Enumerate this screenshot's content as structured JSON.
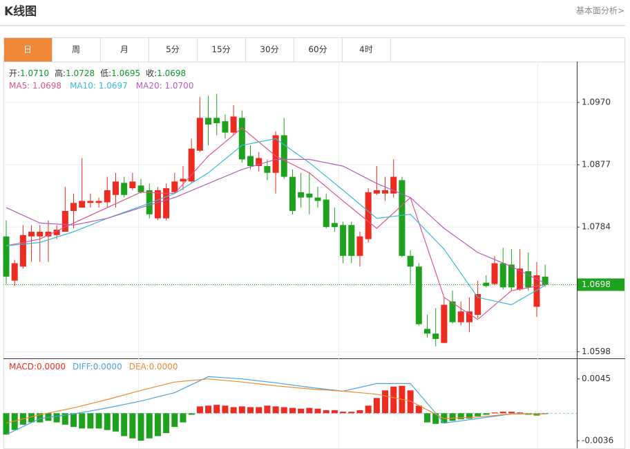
{
  "header": {
    "title": "K线图",
    "link": "基本面分析>"
  },
  "tabs": [
    "日",
    "周",
    "月",
    "5分",
    "15分",
    "30分",
    "60分",
    "4时"
  ],
  "active_tab": 0,
  "chart_data": [
    {
      "type": "candlestick",
      "up_color": "#ee2b20",
      "down_color": "#1ea21e",
      "info": [
        {
          "label": "开:",
          "value": "1.0710"
        },
        {
          "label": "高:",
          "value": "1.0728"
        },
        {
          "label": "低:",
          "value": "1.0695"
        },
        {
          "label": "收:",
          "value": "1.0698"
        }
      ],
      "open": [
        1.077,
        1.0704,
        1.0725,
        1.077,
        1.077,
        1.077,
        1.0772,
        1.0777,
        1.0808,
        1.0813,
        1.082,
        1.082,
        1.0821,
        1.0832,
        1.085,
        1.0842,
        1.0846,
        1.0839,
        1.0797,
        1.0797,
        1.0836,
        1.0852,
        1.0852,
        1.0898,
        1.0947,
        1.0947,
        1.0942,
        1.0925,
        1.0947,
        1.089,
        1.0875,
        1.0875,
        1.0865,
        1.0921,
        1.0859,
        1.0836,
        1.0834,
        1.0828,
        1.0825,
        1.079,
        1.0787,
        1.0787,
        1.0741,
        1.0766,
        1.0834,
        1.0834,
        1.0834,
        1.0854,
        1.0741,
        1.0725,
        1.0632,
        1.0625,
        1.0611,
        1.0673,
        1.0642,
        1.0642,
        1.0653,
        1.0701,
        1.0699,
        1.073,
        1.0728,
        1.0691,
        1.0718,
        1.0665,
        1.071
      ],
      "high": [
        1.0794,
        1.0735,
        1.0787,
        1.0787,
        1.0787,
        1.0794,
        1.0787,
        1.0844,
        1.0834,
        1.0887,
        1.0834,
        1.0828,
        1.0859,
        1.0865,
        1.0859,
        1.0865,
        1.0856,
        1.0849,
        1.0844,
        1.0849,
        1.0865,
        1.0875,
        1.0916,
        1.0978,
        1.098,
        1.0983,
        1.0952,
        1.0966,
        1.0958,
        1.0906,
        1.0896,
        1.0885,
        1.0927,
        1.0947,
        1.087,
        1.0865,
        1.0865,
        1.0844,
        1.0834,
        1.0813,
        1.0792,
        1.0792,
        1.0777,
        1.0842,
        1.0875,
        1.0859,
        1.0885,
        1.0859,
        1.0749,
        1.073,
        1.0653,
        1.0663,
        1.0679,
        1.0689,
        1.0673,
        1.0679,
        1.0704,
        1.0712,
        1.0741,
        1.0753,
        1.0751,
        1.0751,
        1.0746,
        1.0732,
        1.0728
      ],
      "low": [
        1.0699,
        1.0696,
        1.0722,
        1.0732,
        1.0732,
        1.0732,
        1.0766,
        1.0777,
        1.0782,
        1.0813,
        1.0813,
        1.0813,
        1.0813,
        1.0813,
        1.0828,
        1.0839,
        1.0834,
        1.0797,
        1.0794,
        1.0794,
        1.0834,
        1.0839,
        1.0849,
        1.0896,
        1.0906,
        1.0921,
        1.0916,
        1.0921,
        1.088,
        1.087,
        1.0867,
        1.0854,
        1.0834,
        1.0856,
        1.0803,
        1.0813,
        1.0803,
        1.0813,
        1.0782,
        1.0777,
        1.073,
        1.073,
        1.0725,
        1.0761,
        1.0832,
        1.0823,
        1.0828,
        1.0739,
        1.0699,
        1.0637,
        1.0619,
        1.0606,
        1.0611,
        1.064,
        1.0637,
        1.0627,
        1.0648,
        1.0694,
        1.0697,
        1.0691,
        1.0689,
        1.0689,
        1.0689,
        1.065,
        1.0695
      ],
      "close": [
        1.071,
        1.073,
        1.0772,
        1.0777,
        1.0777,
        1.0777,
        1.078,
        1.0808,
        1.082,
        1.0823,
        1.0823,
        1.0823,
        1.0839,
        1.0852,
        1.0832,
        1.0852,
        1.0836,
        1.0803,
        1.0839,
        1.0842,
        1.0852,
        1.0856,
        1.0901,
        1.0947,
        1.0937,
        1.0939,
        1.0925,
        1.0949,
        1.0885,
        1.0875,
        1.0887,
        1.0865,
        1.0921,
        1.0859,
        1.0808,
        1.0828,
        1.0828,
        1.0823,
        1.0784,
        1.0784,
        1.0741,
        1.0741,
        1.077,
        1.0836,
        1.0839,
        1.0839,
        1.0859,
        1.0741,
        1.0725,
        1.0639,
        1.0625,
        1.0617,
        1.0668,
        1.0642,
        1.0658,
        1.0658,
        1.0684,
        1.0696,
        1.073,
        1.0694,
        1.0694,
        1.0722,
        1.0694,
        1.0712,
        1.0698
      ],
      "ma": [
        {
          "name": "MA5",
          "legend_value": ": 1.0698",
          "color": "#e4548a",
          "x": [
            0,
            4,
            8,
            12,
            16,
            20,
            24,
            28,
            32,
            36,
            40,
            44,
            48,
            52,
            56,
            60,
            64
          ],
          "values": [
            1.0756,
            1.0766,
            1.079,
            1.0813,
            1.0836,
            1.0834,
            1.089,
            1.0932,
            1.089,
            1.0865,
            1.0823,
            1.0782,
            1.0828,
            1.0679,
            1.0646,
            1.0689,
            1.0698
          ]
        },
        {
          "name": "MA10",
          "legend_value": ": 1.0697",
          "color": "#35bdd6",
          "x": [
            0,
            4,
            8,
            12,
            16,
            20,
            24,
            28,
            32,
            36,
            40,
            44,
            48,
            52,
            56,
            60,
            64
          ],
          "values": [
            1.0756,
            1.0761,
            1.0777,
            1.0797,
            1.0815,
            1.0834,
            1.0865,
            1.0906,
            1.0916,
            1.088,
            1.0839,
            1.0797,
            1.0803,
            1.0751,
            1.0679,
            1.0668,
            1.0697
          ]
        },
        {
          "name": "MA20",
          "legend_value": ": 1.0700",
          "color": "#b45cbf",
          "x": [
            0,
            4,
            8,
            12,
            16,
            20,
            24,
            28,
            32,
            36,
            40,
            44,
            48,
            52,
            56,
            60,
            64
          ],
          "values": [
            1.0813,
            1.079,
            1.0787,
            1.0797,
            1.0813,
            1.0828,
            1.0849,
            1.087,
            1.0885,
            1.0885,
            1.0875,
            1.0849,
            1.0828,
            1.0782,
            1.0746,
            1.0725,
            1.07
          ]
        }
      ],
      "ylim": [
        1.0588,
        1.1031
      ],
      "yticks": [
        {
          "value": 1.097,
          "label": "1.0970"
        },
        1.0877,
        1.0784,
        1.0598
      ],
      "last": {
        "value": 1.0698,
        "label": "1.0698",
        "color": "#1ea21e"
      },
      "grid": true
    },
    {
      "type": "macd",
      "name": "MACD",
      "legend_value": ":0.0000",
      "up_color": "#ee2b20",
      "down_color": "#1ea21e",
      "values": [
        -0.0028,
        -0.0022,
        -0.0015,
        -0.0012,
        -0.0012,
        -0.001,
        -0.0012,
        -0.0015,
        -0.0018,
        -0.002,
        -0.002,
        -0.002,
        -0.0022,
        -0.0024,
        -0.003,
        -0.0033,
        -0.0036,
        -0.0033,
        -0.003,
        -0.0026,
        -0.0018,
        -0.0012,
        -0.0002,
        0.0009,
        0.001,
        0.0011,
        0.001,
        0.0008,
        0.0009,
        0.0008,
        0.0008,
        0.001,
        0.0009,
        0.0008,
        0.0007,
        0.0006,
        0.0007,
        0.0006,
        0.0004,
        0.0004,
        0.0002,
        0.0002,
        0.0004,
        0.001,
        0.002,
        0.003,
        0.0035,
        0.0036,
        0.003,
        0.001,
        -0.0012,
        -0.0014,
        -0.0013,
        -0.001,
        -0.0008,
        -0.0007,
        -0.0004,
        -0.0002,
        0.0001,
        0.0002,
        0.0002,
        0.0001,
        -0.0002,
        -0.0003,
        -0.0001
      ],
      "series": [
        {
          "name": "DIFF",
          "legend_value": ":0.0000",
          "color": "#4ea3e0",
          "x": [
            0,
            4,
            8,
            12,
            16,
            20,
            24,
            28,
            32,
            36,
            40,
            44,
            48,
            52,
            56,
            60,
            64
          ],
          "values": [
            -0.0028,
            -0.0007,
            -0.0001,
            0.0007,
            0.0016,
            0.0027,
            0.0048,
            0.0045,
            0.004,
            0.0034,
            0.0029,
            0.0039,
            0.0039,
            -0.0013,
            -0.0007,
            -0.0001,
            -0.0001
          ]
        },
        {
          "name": "DEA",
          "legend_value": ":0.0000",
          "color": "#f08a2a",
          "x": [
            0,
            4,
            8,
            12,
            16,
            20,
            24,
            28,
            32,
            36,
            40,
            44,
            48,
            52,
            56,
            60,
            64
          ],
          "values": [
            -0.0013,
            -0.0002,
            0.0007,
            0.0018,
            0.003,
            0.0041,
            0.0045,
            0.0041,
            0.0036,
            0.0032,
            0.0029,
            0.0025,
            0.0016,
            -0.0007,
            -0.0005,
            -0.0001,
            -0.0001
          ]
        }
      ],
      "ylim": [
        -0.0046,
        0.0072
      ],
      "yticks": [
        0.0045,
        -0.0036
      ]
    }
  ]
}
